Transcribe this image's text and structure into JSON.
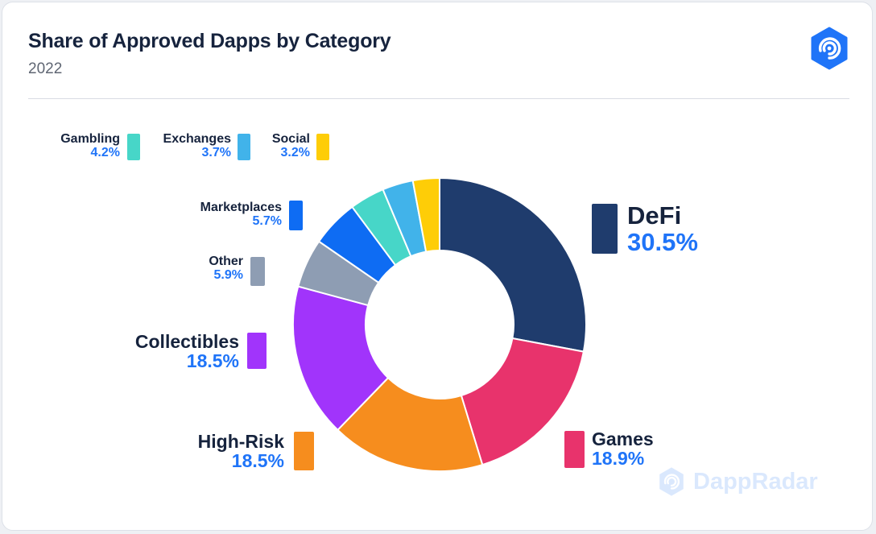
{
  "header": {
    "title": "Share of Approved Dapps by Category",
    "subtitle": "2022"
  },
  "brand": {
    "logo_icon": "dappradar-logo-icon",
    "watermark": "DappRadar",
    "accent": "#1f74f8"
  },
  "chart_data": {
    "type": "pie",
    "subtype": "donut",
    "title": "Share of Approved Dapps by Category",
    "subtitle": "2022",
    "unit": "%",
    "slices": [
      {
        "name": "DeFi",
        "value": 30.5,
        "label": "30.5%",
        "color": "#1f3c6d"
      },
      {
        "name": "Games",
        "value": 18.9,
        "label": "18.9%",
        "color": "#e8336c"
      },
      {
        "name": "High-Risk",
        "value": 18.5,
        "label": "18.5%",
        "color": "#f68d1e"
      },
      {
        "name": "Collectibles",
        "value": 18.5,
        "label": "18.5%",
        "color": "#a134fb"
      },
      {
        "name": "Other",
        "value": 5.9,
        "label": "5.9%",
        "color": "#8e9db3"
      },
      {
        "name": "Marketplaces",
        "value": 5.7,
        "label": "5.7%",
        "color": "#0e6cf3"
      },
      {
        "name": "Gambling",
        "value": 4.2,
        "label": "4.2%",
        "color": "#47d6c8"
      },
      {
        "name": "Exchanges",
        "value": 3.7,
        "label": "3.7%",
        "color": "#41b3ea"
      },
      {
        "name": "Social",
        "value": 3.2,
        "label": "3.2%",
        "color": "#fecd07"
      }
    ]
  }
}
